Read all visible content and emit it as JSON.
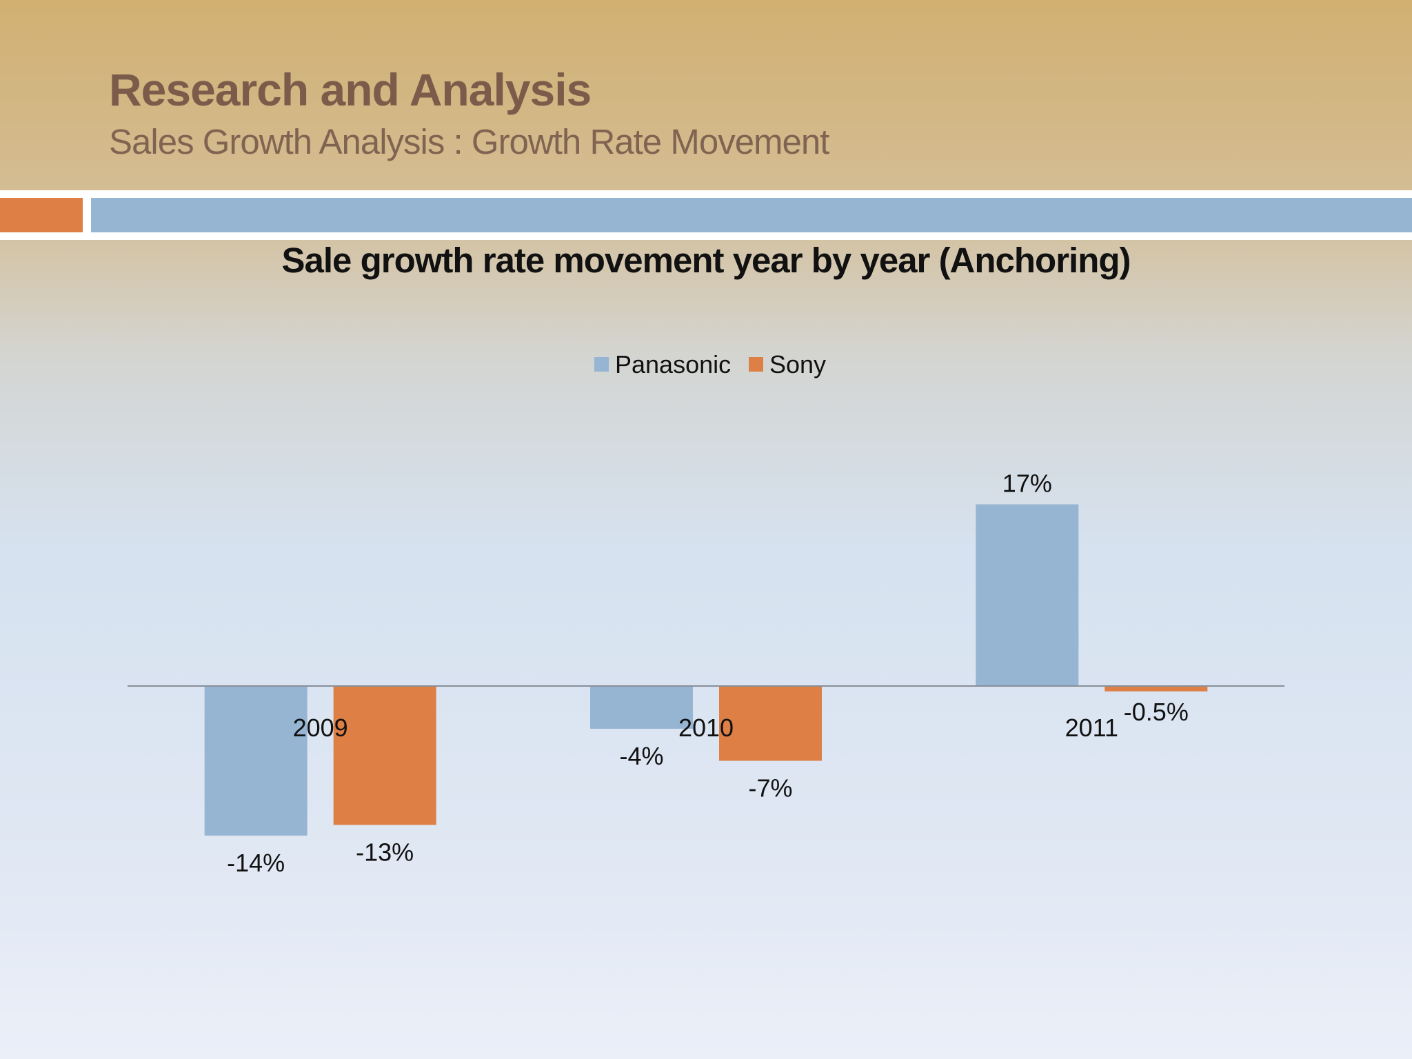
{
  "header": {
    "title": "Research and Analysis",
    "subtitle": "Sales Growth Analysis : Growth Rate Movement"
  },
  "colors": {
    "panasonic": "#95b5d3",
    "sony": "#de7f46",
    "band_orange": "#de7f46",
    "band_blue": "#95b5d3"
  },
  "chart_data": {
    "type": "bar",
    "title": "Sale growth rate movement year by year (Anchoring)",
    "categories": [
      "2009",
      "2010",
      "2011"
    ],
    "series": [
      {
        "name": "Panasonic",
        "values": [
          -14,
          -4,
          17
        ],
        "labels": [
          "-14%",
          "-4%",
          "17%"
        ],
        "color": "#95b5d3"
      },
      {
        "name": "Sony",
        "values": [
          -13,
          -7,
          -0.5
        ],
        "labels": [
          "-13%",
          "-7%",
          "-0.5%"
        ],
        "color": "#de7f46"
      }
    ],
    "ylim": [
      -17,
      20
    ],
    "legend_position": "top-center",
    "grid": false
  }
}
